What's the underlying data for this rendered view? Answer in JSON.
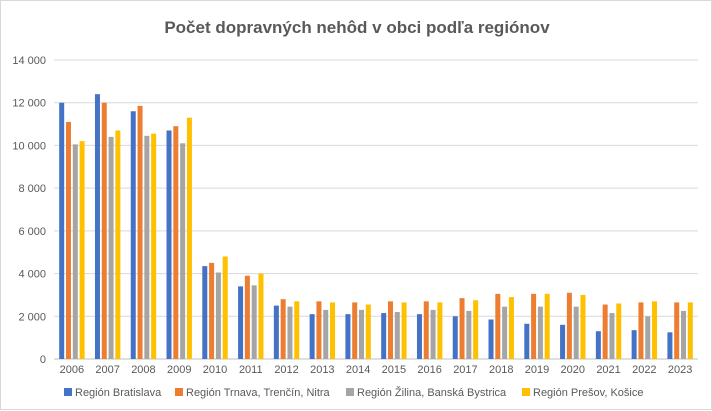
{
  "chart_data": {
    "type": "bar",
    "title": "Počet dopravných nehôd v obci podľa regiónov",
    "xlabel": "",
    "ylabel": "",
    "ylim": [
      0,
      14000
    ],
    "yticks": [
      0,
      2000,
      4000,
      6000,
      8000,
      10000,
      12000,
      14000
    ],
    "ytick_labels": [
      "0",
      "2 000",
      "4 000",
      "6 000",
      "8 000",
      "10 000",
      "12 000",
      "14 000"
    ],
    "grid": "horizontal",
    "legend_position": "bottom",
    "categories": [
      "2006",
      "2007",
      "2008",
      "2009",
      "2010",
      "2011",
      "2012",
      "2013",
      "2014",
      "2015",
      "2016",
      "2017",
      "2018",
      "2019",
      "2020",
      "2021",
      "2022",
      "2023"
    ],
    "series": [
      {
        "name": "Región Bratislava",
        "color": "#4472c4",
        "values": [
          12000,
          12400,
          11600,
          10700,
          4350,
          3400,
          2500,
          2100,
          2100,
          2150,
          2100,
          2000,
          1850,
          1650,
          1600,
          1300,
          1350,
          1250
        ]
      },
      {
        "name": "Región Trnava, Trenčín, Nitra",
        "color": "#ed7d31",
        "values": [
          11100,
          12000,
          11850,
          10900,
          4500,
          3900,
          2800,
          2700,
          2650,
          2700,
          2700,
          2850,
          3050,
          3050,
          3100,
          2550,
          2650,
          2650
        ]
      },
      {
        "name": "Región Žilina, Banská Bystrica",
        "color": "#a5a5a5",
        "values": [
          10050,
          10400,
          10450,
          10100,
          4050,
          3450,
          2450,
          2300,
          2300,
          2200,
          2300,
          2250,
          2450,
          2450,
          2450,
          2150,
          2000,
          2250
        ]
      },
      {
        "name": "Región Prešov, Košice",
        "color": "#ffc000",
        "values": [
          10200,
          10700,
          10550,
          11300,
          4800,
          4000,
          2700,
          2650,
          2550,
          2650,
          2650,
          2750,
          2900,
          3050,
          3000,
          2600,
          2700,
          2650
        ]
      }
    ]
  }
}
